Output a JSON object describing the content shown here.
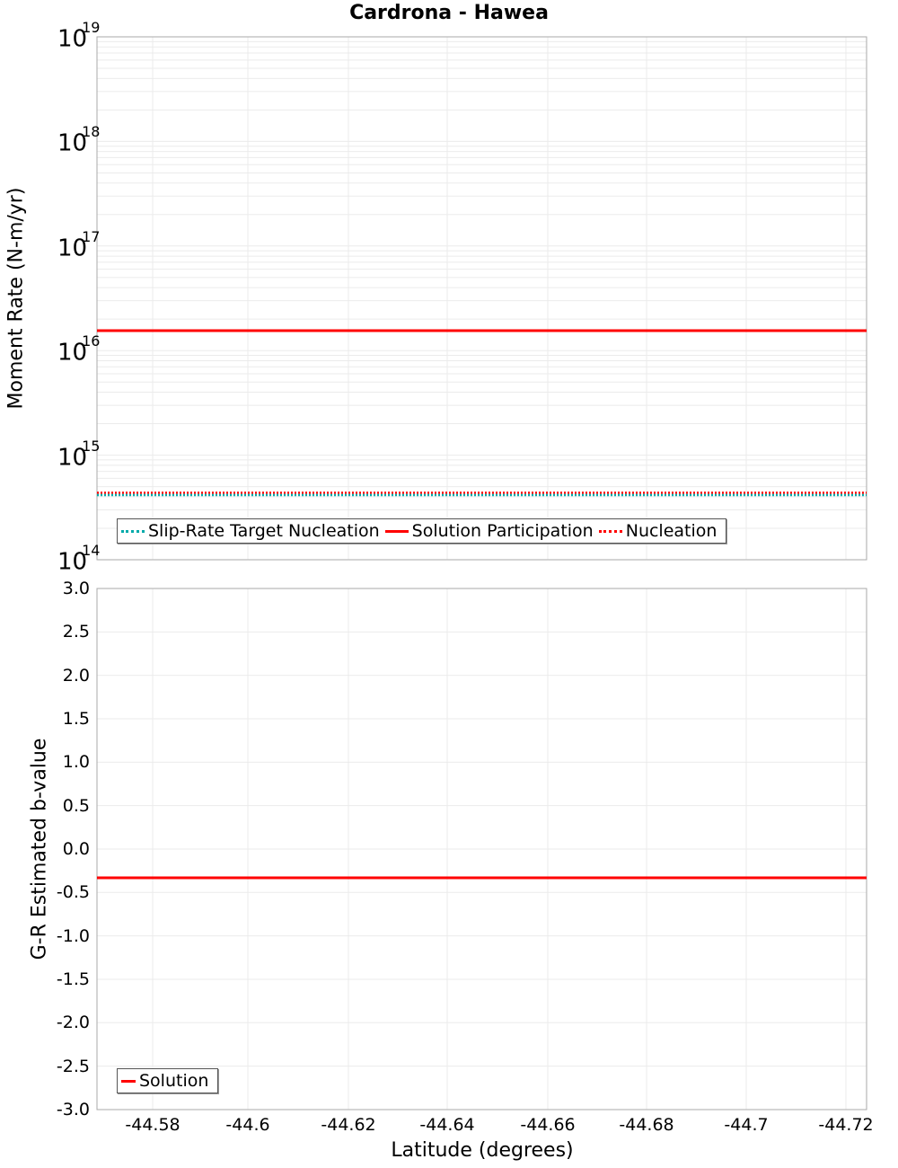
{
  "title": "Cardrona - Hawea",
  "top_plot": {
    "ylabel": "Moment Rate (N-m/yr)",
    "yticks": [
      {
        "base": "10",
        "exp": "19"
      },
      {
        "base": "10",
        "exp": "18"
      },
      {
        "base": "10",
        "exp": "17"
      },
      {
        "base": "10",
        "exp": "16"
      },
      {
        "base": "10",
        "exp": "15"
      },
      {
        "base": "10",
        "exp": "14"
      }
    ],
    "legend": [
      "Slip-Rate Target Nucleation",
      "Solution Participation",
      "Nucleation"
    ]
  },
  "bottom_plot": {
    "ylabel": "G-R Estimated b-value",
    "yticks": [
      "3.0",
      "2.5",
      "2.0",
      "1.5",
      "1.0",
      "0.5",
      "0.0",
      "-0.5",
      "-1.0",
      "-1.5",
      "-2.0",
      "-2.5",
      "-3.0"
    ],
    "legend": [
      "Solution"
    ]
  },
  "xlabel": "Latitude (degrees)",
  "xticks": [
    "-44.58",
    "-44.6",
    "-44.62",
    "-44.64",
    "-44.66",
    "-44.68",
    "-44.7",
    "-44.72"
  ],
  "chart_data": [
    {
      "type": "line",
      "title": "Cardrona - Hawea",
      "xlabel": "Latitude (degrees)",
      "ylabel": "Moment Rate (N-m/yr)",
      "yscale": "log",
      "ylim": [
        100000000000000.0,
        1e+19
      ],
      "xlim": [
        -44.572,
        -44.727
      ],
      "grid": true,
      "legend_position": "lower-left",
      "series": [
        {
          "name": "Slip-Rate Target Nucleation",
          "color": "#00aaaa",
          "style": "dotted",
          "x": [
            -44.572,
            -44.727
          ],
          "values": [
            390000000000000.0,
            390000000000000.0
          ]
        },
        {
          "name": "Solution Participation",
          "color": "#ff0000",
          "style": "solid",
          "x": [
            -44.572,
            -44.727
          ],
          "values": [
            1.55e+16,
            1.55e+16
          ]
        },
        {
          "name": "Nucleation",
          "color": "#ff0000",
          "style": "dotted",
          "x": [
            -44.572,
            -44.727
          ],
          "values": [
            410000000000000.0,
            410000000000000.0
          ]
        }
      ]
    },
    {
      "type": "line",
      "xlabel": "Latitude (degrees)",
      "ylabel": "G-R Estimated b-value",
      "ylim": [
        -3.0,
        3.0
      ],
      "xlim": [
        -44.572,
        -44.727
      ],
      "grid": true,
      "legend_position": "lower-left",
      "series": [
        {
          "name": "Solution",
          "color": "#ff0000",
          "style": "solid",
          "x": [
            -44.572,
            -44.727
          ],
          "values": [
            -0.34,
            -0.34
          ]
        }
      ]
    }
  ]
}
